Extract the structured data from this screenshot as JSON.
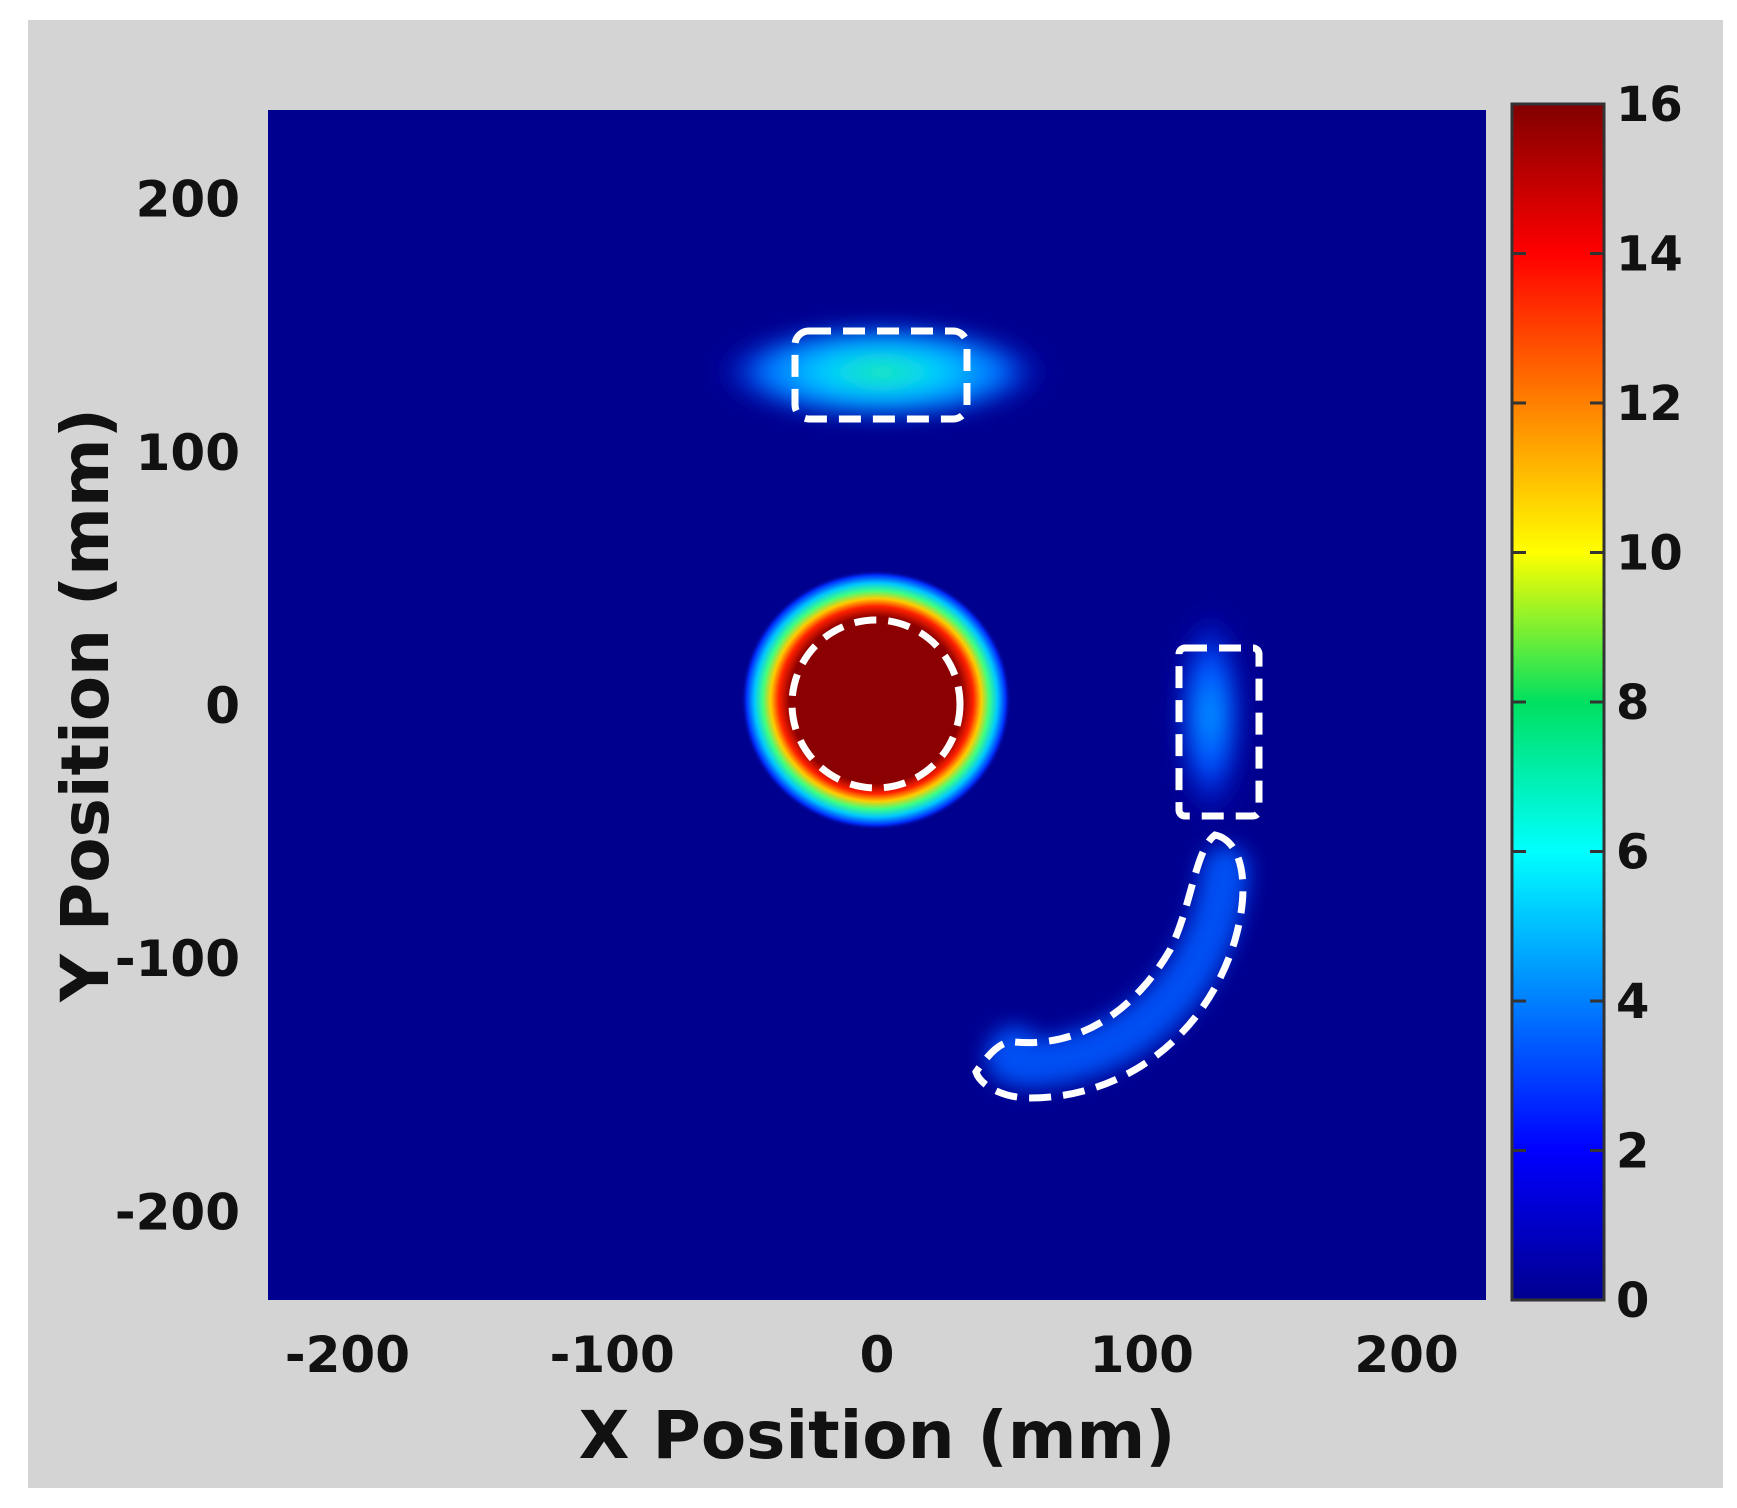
{
  "chart_data": {
    "type": "heatmap",
    "title": "",
    "xlabel": "X Position (mm)",
    "ylabel": "Y Position (mm)",
    "xlim": [
      -230,
      230
    ],
    "ylim": [
      -235,
      235
    ],
    "x_ticks": [
      -200,
      -100,
      0,
      100,
      200
    ],
    "y_ticks": [
      200,
      100,
      0,
      -100,
      -200
    ],
    "colorbar": {
      "colormap": "jet",
      "range": [
        0,
        16
      ],
      "ticks": [
        0,
        2,
        4,
        6,
        8,
        10,
        12,
        14,
        16
      ]
    },
    "background_value": 0,
    "features": [
      {
        "name": "central-disc",
        "shape": "circle",
        "center": [
          2,
          -5
        ],
        "radius_mm": 48,
        "peak": 16
      },
      {
        "name": "top-rectangle",
        "shape": "rectangle",
        "x_range": [
          -30,
          35
        ],
        "y_range": [
          108,
          142
        ],
        "peak": 6
      },
      {
        "name": "right-rectangle",
        "shape": "rectangle",
        "x_range": [
          118,
          148
        ],
        "y_range": [
          -45,
          20
        ],
        "peak": 4
      },
      {
        "name": "arc-region",
        "shape": "arc",
        "peak": 3.5
      }
    ],
    "annotations": "white dashed outlines around each region"
  },
  "colors": {
    "figure_background": "#d4d4d4",
    "plot_background": "#00008f",
    "outline": "#ffffff"
  }
}
